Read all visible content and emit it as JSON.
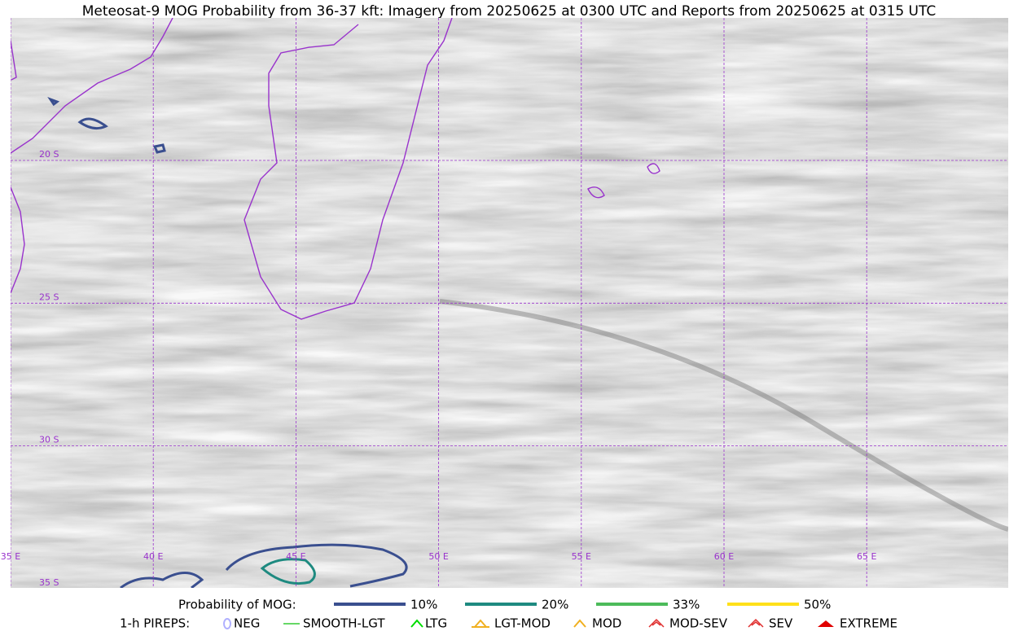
{
  "title": "Meteosat-9 MOG Probability from 36-37 kft: Imagery from 20250625 at 0300 UTC and Reports from 20250625 at 0315 UTC",
  "map": {
    "lat_labels": [
      "20 S",
      "25 S",
      "30 S",
      "35 S"
    ],
    "lon_labels": [
      "35 E",
      "40 E",
      "45 E",
      "50 E",
      "55 E",
      "60 E",
      "65 E"
    ]
  },
  "legend": {
    "title": "Probability of MOG:",
    "items": [
      {
        "label": "10%",
        "color": "#3a4f8f"
      },
      {
        "label": "20%",
        "color": "#1e8a80"
      },
      {
        "label": "33%",
        "color": "#4cbb5a"
      },
      {
        "label": "50%",
        "color": "#ffe01a"
      }
    ]
  },
  "pireps": {
    "title": "1-h PIREPS:",
    "items": [
      {
        "label": "NEG",
        "color": "#b0b0ff"
      },
      {
        "label": "SMOOTH-LGT",
        "color": "#33cc33"
      },
      {
        "label": "LTG",
        "color": "#00dd00"
      },
      {
        "label": "LGT-MOD",
        "color": "#f0b020"
      },
      {
        "label": "MOD",
        "color": "#f0b020"
      },
      {
        "label": "MOD-SEV",
        "color": "#e03030"
      },
      {
        "label": "SEV",
        "color": "#e03030"
      },
      {
        "label": "EXTREME",
        "color": "#e00000"
      }
    ]
  }
}
